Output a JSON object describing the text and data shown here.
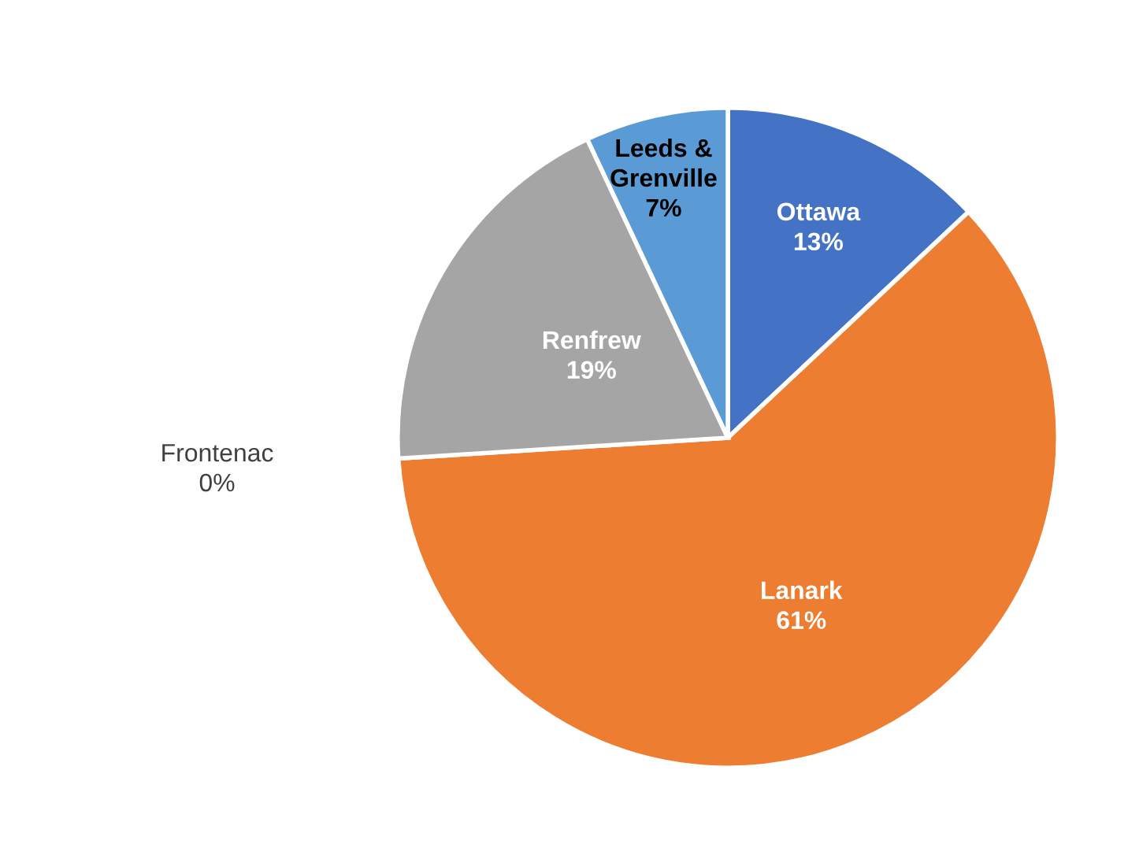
{
  "chart_data": {
    "type": "pie",
    "categories": [
      "Ottawa",
      "Lanark",
      "Frontenac",
      "Renfrew",
      "Leeds &\nGrenville"
    ],
    "values": [
      13,
      61,
      0,
      19,
      7
    ],
    "colors": [
      "#4472c4",
      "#ed7d31",
      "#ffc000",
      "#a5a5a5",
      "#5b9bd5"
    ],
    "value_labels": [
      "13%",
      "61%",
      "0%",
      "19%",
      "7%"
    ],
    "legend": false
  }
}
